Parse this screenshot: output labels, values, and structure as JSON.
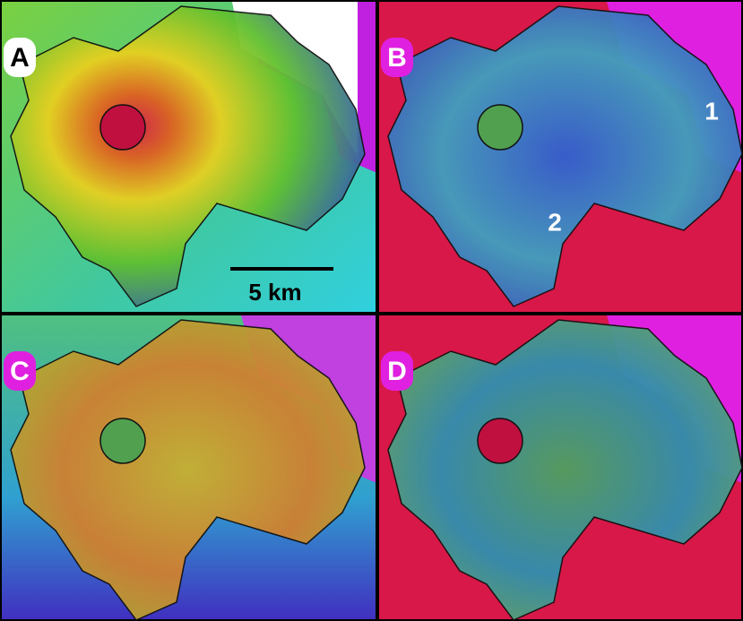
{
  "panels": [
    {
      "label": "A",
      "scale_bar": "5 km"
    },
    {
      "label": "B",
      "annotations": [
        "1",
        "2"
      ]
    },
    {
      "label": "C"
    },
    {
      "label": "D"
    }
  ]
}
